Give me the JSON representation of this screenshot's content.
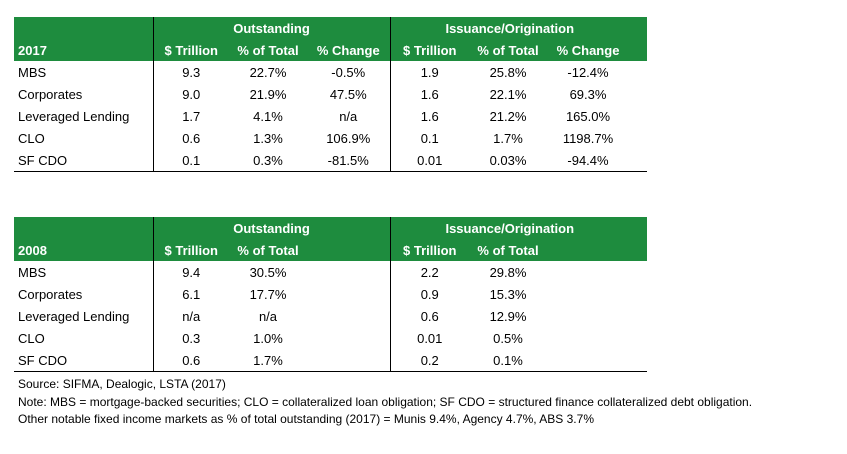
{
  "table_2017": {
    "group_outstanding": "Outstanding",
    "group_issuance": "Issuance/Origination",
    "year": "2017",
    "columns": [
      "$ Trillion",
      "% of Total",
      "% Change",
      "$ Trillion",
      "% of Total",
      "% Change"
    ],
    "rows": [
      {
        "label": "MBS",
        "cells": [
          "9.3",
          "22.7%",
          "-0.5%",
          "1.9",
          "25.8%",
          "-12.4%"
        ]
      },
      {
        "label": "Corporates",
        "cells": [
          "9.0",
          "21.9%",
          "47.5%",
          "1.6",
          "22.1%",
          "69.3%"
        ]
      },
      {
        "label": "Leveraged Lending",
        "cells": [
          "1.7",
          "4.1%",
          "n/a",
          "1.6",
          "21.2%",
          "165.0%"
        ]
      },
      {
        "label": "CLO",
        "cells": [
          "0.6",
          "1.3%",
          "106.9%",
          "0.1",
          "1.7%",
          "1198.7%"
        ]
      },
      {
        "label": "SF CDO",
        "cells": [
          "0.1",
          "0.3%",
          "-81.5%",
          "0.01",
          "0.03%",
          "-94.4%"
        ]
      }
    ]
  },
  "table_2008": {
    "group_outstanding": "Outstanding",
    "group_issuance": "Issuance/Origination",
    "year": "2008",
    "columns": [
      "$ Trillion",
      "% of Total",
      "$ Trillion",
      "% of Total"
    ],
    "rows": [
      {
        "label": "MBS",
        "cells": [
          "9.4",
          "30.5%",
          "2.2",
          "29.8%"
        ]
      },
      {
        "label": "Corporates",
        "cells": [
          "6.1",
          "17.7%",
          "0.9",
          "15.3%"
        ]
      },
      {
        "label": "Leveraged Lending",
        "cells": [
          "n/a",
          "n/a",
          "0.6",
          "12.9%"
        ]
      },
      {
        "label": "CLO",
        "cells": [
          "0.3",
          "1.0%",
          "0.01",
          "0.5%"
        ]
      },
      {
        "label": "SF CDO",
        "cells": [
          "0.6",
          "1.7%",
          "0.2",
          "0.1%"
        ]
      }
    ]
  },
  "notes": {
    "source": "Source: SIFMA, Dealogic, LSTA (2017)",
    "note": "Note: MBS = mortgage-backed securities; CLO = collateralized loan obligation; SF CDO = structured finance collateralized debt obligation.",
    "other": "Other notable fixed income markets as % of total outstanding (2017) = Munis 9.4%, Agency 4.7%, ABS 3.7%"
  },
  "colors": {
    "header_green": "#1E8C3E",
    "header_text": "#FFFFFF"
  }
}
